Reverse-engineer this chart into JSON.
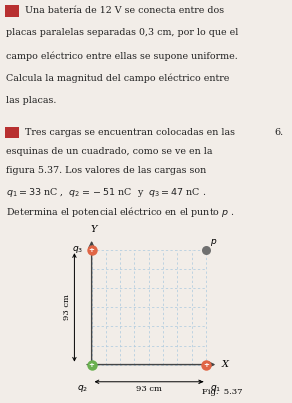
{
  "background_color": "#f2ede8",
  "text1_lines": [
    " Una batería de 12 V se conecta entre dos",
    "placas paralelas separadas 0,3 cm, por lo que el",
    "campo eléctrico entre ellas se supone uniforme.",
    "Calcula la magnitud del campo eléctrico entre",
    "las placas."
  ],
  "text2_line1": " Tres cargas se encuentran colocadas en las",
  "text2_lines": [
    "esquinas de un cuadrado, como se ve en la",
    "figura 5.37. Los valores de las cargas son",
    "$q_1 = 33$ nC ,  $q_2 = -51$ nC  y  $q_3 = 47$ nC .",
    "Determina el potencial eléctrico en el punto $p$ ."
  ],
  "number_label": "6.",
  "fig_label": "Fig.  5.37",
  "grid_color": "#b0cce0",
  "axis_color": "#444444",
  "q1_color": "#e06545",
  "q2_color": "#6ab050",
  "q3_color": "#e06545",
  "p_color": "#707070",
  "icon_color": "#b83030",
  "font_size": 6.8,
  "grid_nx": 9,
  "grid_ny": 7
}
